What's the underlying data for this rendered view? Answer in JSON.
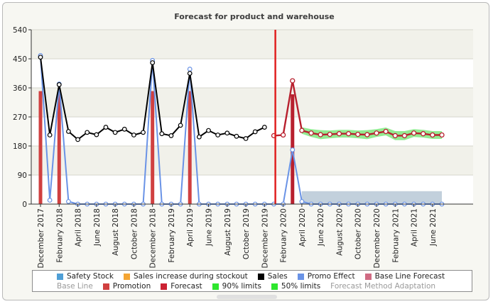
{
  "chart_data": {
    "type": "line",
    "title": "Forecast for product and warehouse",
    "ylim": [
      0,
      540
    ],
    "yticks": [
      "540",
      "450",
      "360",
      "270",
      "180",
      "90",
      "0"
    ],
    "ytick_values": [
      540,
      450,
      360,
      270,
      180,
      90,
      0
    ],
    "x_count": 44,
    "x_labels": [
      {
        "i": 0,
        "label": "December 2017"
      },
      {
        "i": 2,
        "label": "February 2018"
      },
      {
        "i": 4,
        "label": "April 2018"
      },
      {
        "i": 6,
        "label": "June 2018"
      },
      {
        "i": 8,
        "label": "August 2018"
      },
      {
        "i": 10,
        "label": "October 2018"
      },
      {
        "i": 12,
        "label": "December 2018"
      },
      {
        "i": 14,
        "label": "February 2019"
      },
      {
        "i": 16,
        "label": "April 2019"
      },
      {
        "i": 18,
        "label": "June 2019"
      },
      {
        "i": 20,
        "label": "August 2019"
      },
      {
        "i": 22,
        "label": "October 2019"
      },
      {
        "i": 24,
        "label": "December 2019"
      },
      {
        "i": 26,
        "label": "February 2020"
      },
      {
        "i": 28,
        "label": "April 2020"
      },
      {
        "i": 30,
        "label": "June 2020"
      },
      {
        "i": 32,
        "label": "August 2020"
      },
      {
        "i": 34,
        "label": "October 2020"
      },
      {
        "i": 36,
        "label": "December 2020"
      },
      {
        "i": 38,
        "label": "February 2021"
      },
      {
        "i": 40,
        "label": "April 2021"
      },
      {
        "i": 42,
        "label": "June 2021"
      }
    ],
    "forecast_start_index": 25.2,
    "sales": [
      455,
      214,
      370,
      225,
      200,
      222,
      215,
      238,
      222,
      232,
      214,
      222,
      438,
      218,
      212,
      244,
      405,
      208,
      228,
      214,
      220,
      210,
      203,
      224,
      238
    ],
    "sales_start_index": 0,
    "promotion": [
      {
        "i": 0,
        "value": 350
      },
      {
        "i": 2,
        "value": 350
      },
      {
        "i": 12,
        "value": 350
      },
      {
        "i": 16,
        "value": 350
      }
    ],
    "promo_effect": [
      460,
      12,
      372,
      8,
      0,
      0,
      0,
      0,
      0,
      0,
      0,
      0,
      445,
      0,
      0,
      0,
      418,
      0,
      0,
      0,
      0,
      0,
      0,
      0,
      0,
      0,
      0,
      168,
      8,
      0,
      0,
      0,
      0,
      0,
      0,
      0,
      0,
      0,
      0,
      0,
      0,
      0,
      0,
      0
    ],
    "promo_effect_start_index": 0,
    "forecast": [
      212,
      214,
      382,
      228,
      220,
      215,
      216,
      218,
      218,
      216,
      215,
      220,
      225,
      212,
      212,
      220,
      218,
      214,
      214
    ],
    "forecast_start_index_data": 25,
    "forecast_bar": {
      "i": 27,
      "value": 340
    },
    "safety_stock": 40,
    "safety_stock_range": [
      28,
      43
    ],
    "limits_band": [
      10,
      12,
      14,
      12,
      12,
      12,
      12,
      14,
      12,
      12,
      14,
      14,
      12,
      12,
      12,
      12,
      12,
      12
    ],
    "limits_start_index": 28,
    "legend_row1": [
      {
        "label": "Safety Stock",
        "color": "#4f9fd6"
      },
      {
        "label": "Sales increase during stockout",
        "color": "#f4a533"
      },
      {
        "label": "Sales",
        "color": "#000000"
      },
      {
        "label": "Promo Effect",
        "color": "#6a93e6"
      },
      {
        "label": "Base Line Forecast",
        "color": "#d06b83"
      }
    ],
    "legend_row2": [
      {
        "label": "Base Line",
        "color": null
      },
      {
        "label": "Promotion",
        "color": "#d04040"
      },
      {
        "label": "Forecast",
        "color": "#cc2233"
      },
      {
        "label": "90% limits",
        "color": "#2ee62e"
      },
      {
        "label": "50% limits",
        "color": "#2ee62e"
      },
      {
        "label": "Forecast Method Adaptation",
        "color": null
      }
    ],
    "colors": {
      "sales": "#000000",
      "promo_effect": "#6a93e6",
      "promotion": "#d04040",
      "forecast": "#b8202e",
      "forecast_marker": "#ffffff",
      "divider": "#e02020",
      "safety_stock": "#b7c8d6",
      "limits": "#6ee66e",
      "band_odd": "#f1f1ea",
      "band_even": "#ffffff"
    }
  }
}
